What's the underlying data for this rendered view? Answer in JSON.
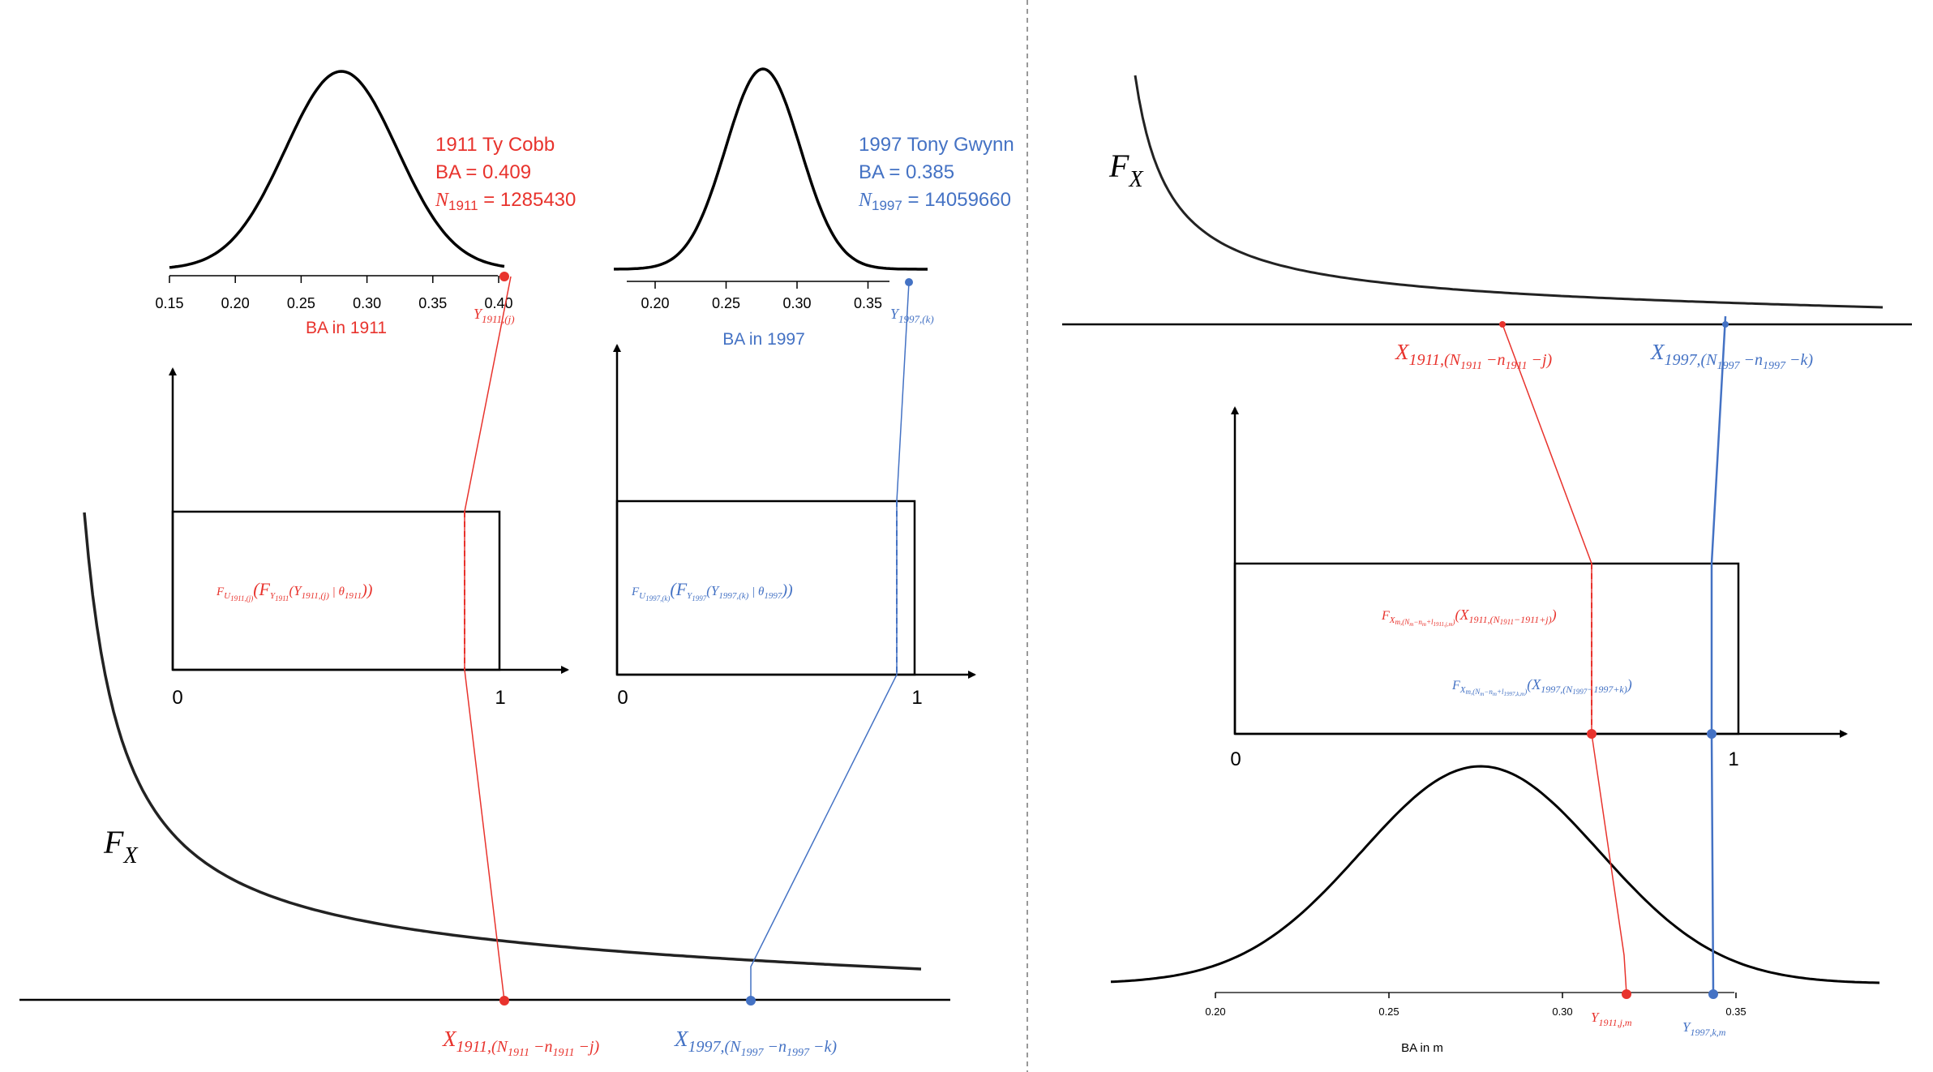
{
  "colors": {
    "red": "#e8332d",
    "blue": "#4472c4",
    "black": "#000000",
    "divider": "#999999"
  },
  "left": {
    "cobb": {
      "title": "1911 Ty Cobb",
      "ba": "BA = 0.409",
      "n_sym": "N",
      "n_sub": "1911",
      "n_val": " = 1285430",
      "axis_title": "BA in 1911",
      "ticks": [
        "0.15",
        "0.20",
        "0.25",
        "0.30",
        "0.35",
        "0.40"
      ],
      "order_label": {
        "base": "Y",
        "sub": "1911,(j)"
      }
    },
    "gwynn": {
      "title": "1997 Tony Gwynn",
      "ba": "BA = 0.385",
      "n_sym": "N",
      "n_sub": "1997",
      "n_val": " = 14059660",
      "axis_title": "BA in 1997",
      "ticks": [
        "0.20",
        "0.25",
        "0.30",
        "0.35"
      ],
      "order_label": {
        "base": "Y",
        "sub": "1997,(k)"
      }
    },
    "box_cobb": {
      "x0": "0",
      "x1": "1",
      "formula": {
        "pre": "F",
        "sub1": "U",
        "sub2": "1911,(j)",
        "mid": "(F",
        "sub3": "Y",
        "sub4": "1911",
        "arg": "(Y",
        "sub5": "1911,(j)",
        "post": " | θ",
        "sub6": "1911",
        "end": "))"
      }
    },
    "box_gwynn": {
      "x0": "0",
      "x1": "1",
      "formula": {
        "pre": "F",
        "sub1": "U",
        "sub2": "1997,(k)",
        "mid": "(F",
        "sub3": "Y",
        "sub4": "1997",
        "arg": "(Y",
        "sub5": "1997,(k)",
        "post": " | θ",
        "sub6": "1997",
        "end": "))"
      }
    },
    "fx_label": {
      "base": "F",
      "sub": "X"
    },
    "x_cobb": {
      "base": "X",
      "sub": "1911,(N",
      "sub2": "1911",
      "mid": " −n",
      "sub3": "1911",
      "end": " −j)"
    },
    "x_gwynn": {
      "base": "X",
      "sub": "1997,(N",
      "sub2": "1997",
      "mid": " −n",
      "sub3": "1997",
      "end": " −k)"
    }
  },
  "right": {
    "fx_label": {
      "base": "F",
      "sub": "X"
    },
    "x_cobb": {
      "base": "X",
      "sub": "1911,(N",
      "sub2": "1911",
      "mid": " −n",
      "sub3": "1911",
      "end": " −j)"
    },
    "x_gwynn": {
      "base": "X",
      "sub": "1997,(N",
      "sub2": "1997",
      "mid": " −n",
      "sub3": "1997",
      "end": " −k)"
    },
    "box": {
      "x0": "0",
      "x1": "1",
      "formula_red": "F_{X_{m,(N_m−n_m+l_{1911,j,m})}} (X_{1911,(N_{1911}−1911+j)})",
      "formula_red_parts": {
        "f": "F",
        "s1": "X",
        "s2": "m,(N",
        "s3": "m",
        "s4": "−n",
        "s5": "m",
        "s6": "+l",
        "s7": "1911,j,m",
        "s8": ")",
        "arg": "(X",
        "a1": "1911,(N",
        "a2": "1911",
        "a3": "−1911+j)",
        "end": ")"
      },
      "formula_blue_parts": {
        "f": "F",
        "s1": "X",
        "s2": "m,(N",
        "s3": "m",
        "s4": "−n",
        "s5": "m",
        "s6": "+l",
        "s7": "1997,k,m",
        "s8": ")",
        "arg": "(X",
        "a1": "1997,(N",
        "a2": "1997",
        "a3": "−1997+k)",
        "end": ")"
      }
    },
    "bottom": {
      "axis_title": "BA in m",
      "ticks": [
        "0.20",
        "0.25",
        "0.30",
        "0.35"
      ],
      "y_red": {
        "base": "Y",
        "sub": "1911,j,m"
      },
      "y_blue": {
        "base": "Y",
        "sub": "1997,k,m"
      }
    }
  }
}
